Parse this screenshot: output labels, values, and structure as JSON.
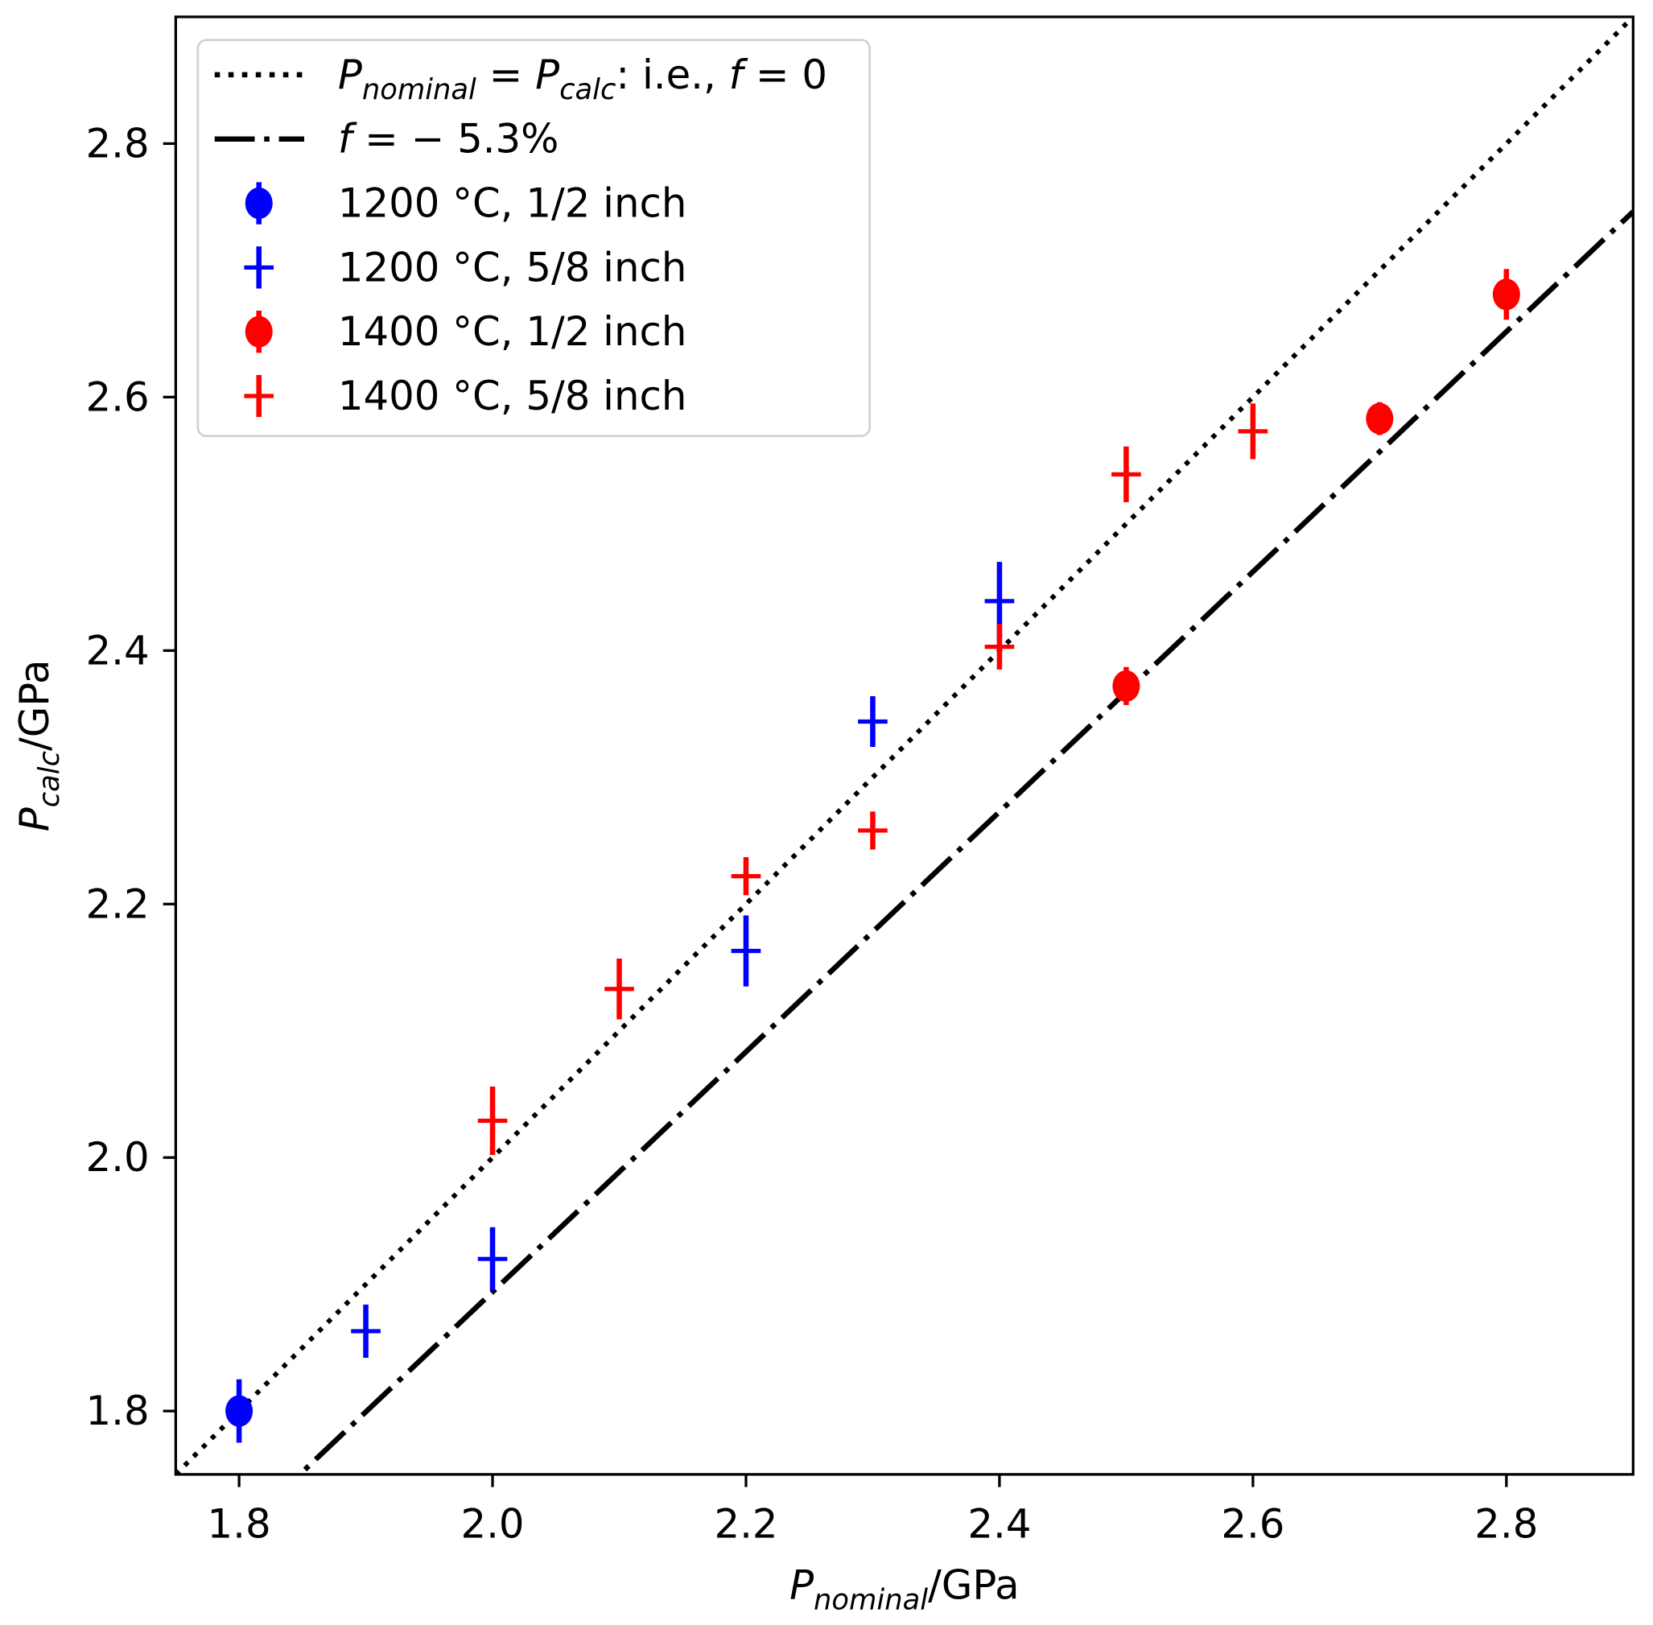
{
  "chart_data": {
    "type": "scatter",
    "title": "",
    "xlabel": {
      "main": "P",
      "sub": "nominal",
      "unit": "/GPa"
    },
    "ylabel": {
      "main": "P",
      "sub": "calc",
      "unit": "/GPa"
    },
    "xlim": [
      1.75,
      2.9
    ],
    "ylim": [
      1.75,
      2.9
    ],
    "xticks": [
      "1.8",
      "2.0",
      "2.2",
      "2.4",
      "2.6",
      "2.8"
    ],
    "yticks": [
      "1.8",
      "2.0",
      "2.2",
      "2.4",
      "2.6",
      "2.8"
    ],
    "grid": false,
    "legend_position": "top-left",
    "lines": [
      {
        "name": "identity",
        "slope": 1.0,
        "style": "dotted",
        "color": "#000000",
        "legend": {
          "p1": "P",
          "s1": "nominal",
          "eq": " = ",
          "p2": "P",
          "s2": "calc",
          "rest": ": i.e., ",
          "f": "f",
          "tail": " = 0"
        }
      },
      {
        "name": "f-5.3",
        "slope": 0.947,
        "style": "dashdot",
        "color": "#000000",
        "legend": {
          "f": "f",
          "tail": " = − 5.3%"
        }
      }
    ],
    "series": [
      {
        "name": "1200 °C, 1/2 inch",
        "color": "#0000ff",
        "marker": "circle",
        "x": [
          1.8
        ],
        "y": [
          1.8
        ],
        "yerr": [
          0.025
        ]
      },
      {
        "name": "1200 °C, 5/8 inch",
        "color": "#0000ff",
        "marker": "plus",
        "x": [
          1.9,
          2.0,
          2.2,
          2.3,
          2.4
        ],
        "y": [
          1.863,
          1.92,
          2.163,
          2.344,
          2.439
        ],
        "yerr": [
          0.021,
          0.025,
          0.028,
          0.02,
          0.031
        ]
      },
      {
        "name": "1400 °C, 1/2 inch",
        "color": "#ff0000",
        "marker": "circle",
        "x": [
          2.5,
          2.7,
          2.8
        ],
        "y": [
          2.372,
          2.583,
          2.681
        ],
        "yerr": [
          0.015,
          0.013,
          0.02
        ]
      },
      {
        "name": "1400 °C, 5/8 inch",
        "color": "#ff0000",
        "marker": "plus",
        "x": [
          2.0,
          2.1,
          2.2,
          2.3,
          2.4,
          2.5,
          2.6
        ],
        "y": [
          2.029,
          2.133,
          2.222,
          2.258,
          2.403,
          2.539,
          2.573
        ],
        "yerr": [
          0.027,
          0.024,
          0.015,
          0.015,
          0.018,
          0.022,
          0.022
        ]
      }
    ]
  }
}
